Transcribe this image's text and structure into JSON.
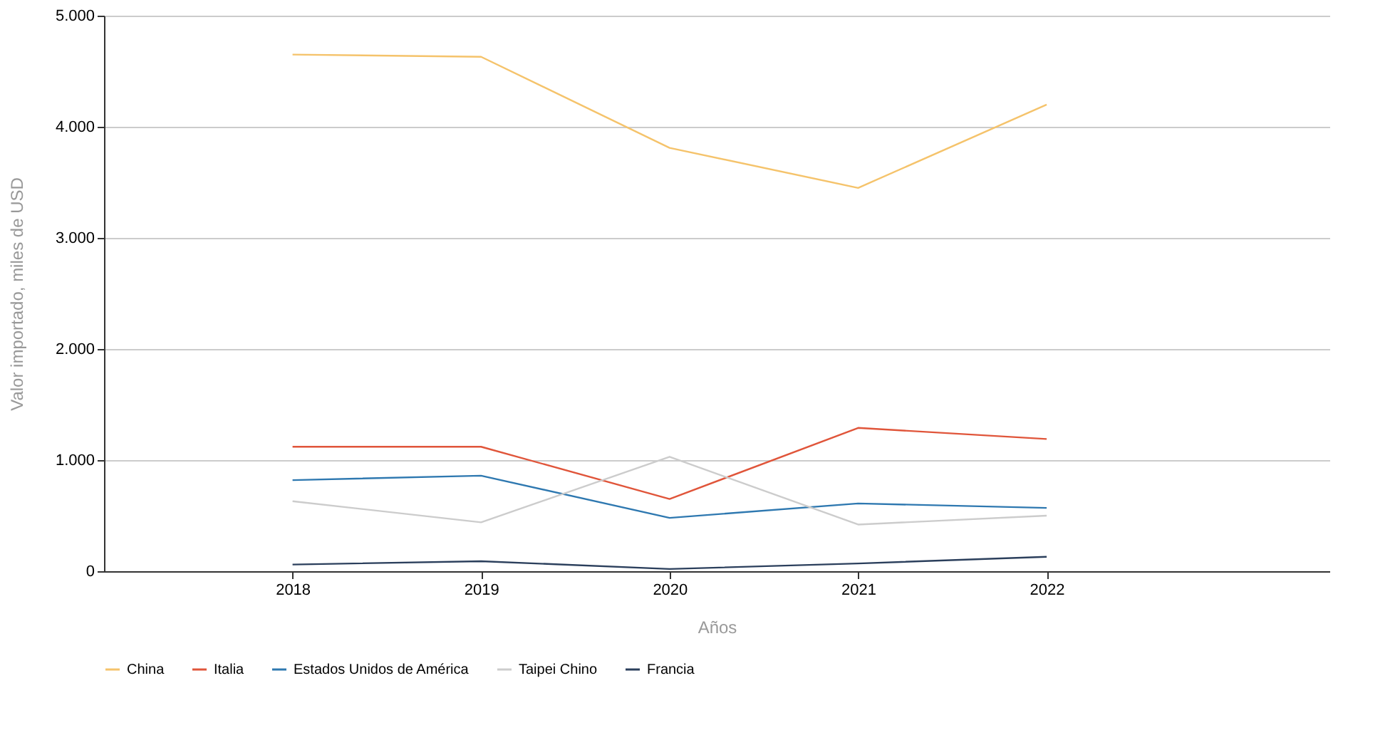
{
  "chart_data": {
    "type": "line",
    "xlabel": "Años",
    "ylabel": "Valor importado, miles de USD",
    "x": [
      2018,
      2019,
      2020,
      2021,
      2022
    ],
    "xlim": [
      2017,
      2023.5
    ],
    "xticks": [
      2018,
      2019,
      2020,
      2021,
      2022
    ],
    "ylim": [
      0,
      5000
    ],
    "yticks": [
      {
        "value": 0,
        "label": "0"
      },
      {
        "value": 1000,
        "label": "1.000"
      },
      {
        "value": 2000,
        "label": "2.000"
      },
      {
        "value": 3000,
        "label": "3.000"
      },
      {
        "value": 4000,
        "label": "4.000"
      },
      {
        "value": 5000,
        "label": "5.000"
      }
    ],
    "grid": "y",
    "legend": "bottom",
    "marker": "none",
    "line_style": "solid",
    "series": [
      {
        "name": "China",
        "color": "#f5c36b",
        "values": [
          4650,
          4630,
          3810,
          3450,
          4200
        ]
      },
      {
        "name": "Italia",
        "color": "#e0553a",
        "values": [
          1120,
          1120,
          650,
          1290,
          1190
        ]
      },
      {
        "name": "Estados Unidos de América",
        "color": "#2e78b0",
        "values": [
          820,
          860,
          480,
          610,
          570
        ]
      },
      {
        "name": "Taipei Chino",
        "color": "#cccccc",
        "values": [
          630,
          440,
          1030,
          420,
          500
        ]
      },
      {
        "name": "Francia",
        "color": "#2b3f5c",
        "values": [
          60,
          90,
          20,
          70,
          130
        ]
      }
    ]
  }
}
